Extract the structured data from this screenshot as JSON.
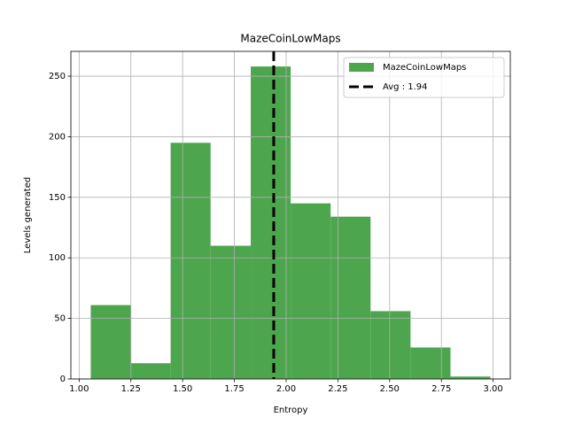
{
  "chart_data": {
    "type": "histogram",
    "title": "MazeCoinLowMaps",
    "xlabel": "Entropy",
    "ylabel": "Levels generated",
    "bins": [
      1.056,
      1.249,
      1.442,
      1.635,
      1.829,
      2.022,
      2.215,
      2.408,
      2.601,
      2.794,
      2.987
    ],
    "series": [
      {
        "name": "MazeCoinLowMaps",
        "color": "#4da64d",
        "values": [
          61,
          13,
          195,
          110,
          258,
          145,
          134,
          56,
          26,
          2
        ]
      }
    ],
    "mean": {
      "value": 1.94,
      "label": "Avg : 1.94",
      "color": "#000000"
    },
    "xlim": [
      0.96,
      3.083
    ],
    "ylim": [
      0,
      270.5
    ],
    "xticks": [
      {
        "value": 1.0,
        "label": "1.00"
      },
      {
        "value": 1.25,
        "label": "1.25"
      },
      {
        "value": 1.5,
        "label": "1.50"
      },
      {
        "value": 1.75,
        "label": "1.75"
      },
      {
        "value": 2.0,
        "label": "2.00"
      },
      {
        "value": 2.25,
        "label": "2.25"
      },
      {
        "value": 2.5,
        "label": "2.50"
      },
      {
        "value": 2.75,
        "label": "2.75"
      },
      {
        "value": 3.0,
        "label": "3.00"
      }
    ],
    "yticks": [
      0,
      50,
      100,
      150,
      200,
      250
    ],
    "grid": true,
    "legend": "upper right"
  }
}
